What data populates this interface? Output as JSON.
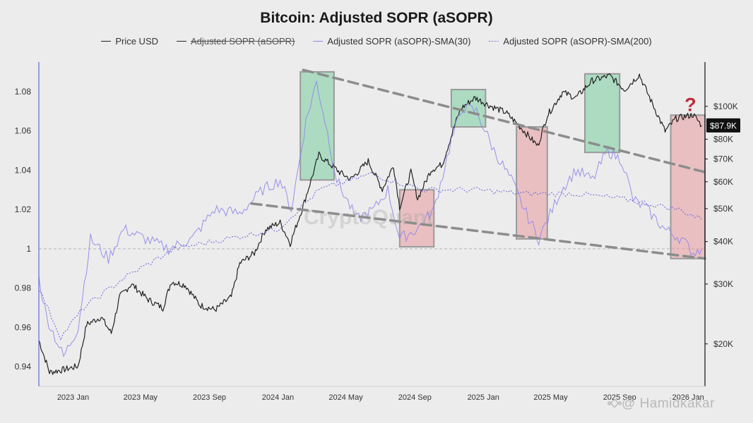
{
  "chart_data": {
    "type": "line",
    "title": "Bitcoin: Adjusted SOPR (aSOPR)",
    "legend": [
      {
        "name": "Price USD",
        "color": "#222222",
        "style": "solid",
        "struck": false
      },
      {
        "name": "Adjusted SOPR (aSOPR)",
        "color": "#222222",
        "style": "solid",
        "struck": true
      },
      {
        "name": "Adjusted SOPR (aSOPR)-SMA(30)",
        "color": "#8f86ea",
        "style": "solid",
        "struck": false
      },
      {
        "name": "Adjusted SOPR (aSOPR)-SMA(200)",
        "color": "#6e66dd",
        "style": "dotted",
        "struck": false
      }
    ],
    "legend_position": "top-center",
    "x_range": [
      "2022-11-01",
      "2026-01-31"
    ],
    "x_ticks": [
      "2023 Jan",
      "2023 May",
      "2023 Sep",
      "2024 Jan",
      "2024 May",
      "2024 Sep",
      "2025 Jan",
      "2025 May",
      "2025 Sep",
      "2026 Jan"
    ],
    "y_left": {
      "scale": "linear",
      "range": [
        0.93,
        1.095
      ],
      "ticks": [
        "0.94",
        "0.96",
        "0.98",
        "1",
        "1.02",
        "1.04",
        "1.06",
        "1.08"
      ]
    },
    "y_right": {
      "scale": "log",
      "range": [
        15000,
        135000
      ],
      "ticks": [
        "$20K",
        "$30K",
        "$40K",
        "$50K",
        "$60K",
        "$70K",
        "$80K",
        "$100K"
      ]
    },
    "current_price_label": "$87.9K",
    "reference_line": 1,
    "series": [
      {
        "name": "Price USD",
        "axis": "right",
        "x": [
          "2022-11-01",
          "2022-11-20",
          "2022-12-15",
          "2023-01-10",
          "2023-01-25",
          "2023-02-20",
          "2023-03-10",
          "2023-03-25",
          "2023-04-15",
          "2023-05-15",
          "2023-06-10",
          "2023-06-25",
          "2023-07-20",
          "2023-08-15",
          "2023-09-11",
          "2023-10-10",
          "2023-10-25",
          "2023-11-20",
          "2023-12-10",
          "2024-01-05",
          "2024-01-23",
          "2024-02-15",
          "2024-03-14",
          "2024-04-20",
          "2024-05-10",
          "2024-06-10",
          "2024-07-05",
          "2024-07-25",
          "2024-08-05",
          "2024-08-25",
          "2024-09-06",
          "2024-09-30",
          "2024-10-20",
          "2024-11-12",
          "2024-11-22",
          "2024-12-17",
          "2025-01-15",
          "2025-02-10",
          "2025-03-05",
          "2025-04-08",
          "2025-04-25",
          "2025-05-22",
          "2025-06-15",
          "2025-07-14",
          "2025-08-14",
          "2025-09-10",
          "2025-10-06",
          "2025-10-20",
          "2025-11-21",
          "2025-12-10",
          "2026-01-10",
          "2026-01-25"
        ],
        "y": [
          20500,
          16500,
          16800,
          17200,
          22800,
          24000,
          21500,
          27500,
          30000,
          27000,
          25500,
          30500,
          29800,
          26000,
          25200,
          27500,
          34500,
          37000,
          43500,
          45500,
          39500,
          51000,
          72000,
          64000,
          61000,
          69000,
          57000,
          67000,
          50500,
          64000,
          53500,
          65000,
          67500,
          89000,
          98500,
          106000,
          100000,
          96000,
          88000,
          76500,
          94000,
          110000,
          106000,
          119000,
          123000,
          112000,
          124000,
          110000,
          84500,
          92000,
          94500,
          87900
        ]
      },
      {
        "name": "Adjusted SOPR (aSOPR)-SMA(30)",
        "axis": "left",
        "x": [
          "2022-11-01",
          "2022-11-15",
          "2022-12-15",
          "2023-01-10",
          "2023-02-01",
          "2023-03-05",
          "2023-04-01",
          "2023-05-10",
          "2023-06-20",
          "2023-08-01",
          "2023-09-10",
          "2023-10-25",
          "2023-12-05",
          "2024-01-05",
          "2024-01-25",
          "2024-02-20",
          "2024-03-10",
          "2024-03-25",
          "2024-04-15",
          "2024-05-20",
          "2024-06-20",
          "2024-07-15",
          "2024-08-05",
          "2024-09-05",
          "2024-10-05",
          "2024-11-05",
          "2024-11-25",
          "2024-12-20",
          "2025-01-20",
          "2025-02-20",
          "2025-03-15",
          "2025-04-10",
          "2025-05-20",
          "2025-06-15",
          "2025-07-15",
          "2025-08-10",
          "2025-09-05",
          "2025-09-25",
          "2025-10-20",
          "2025-11-20",
          "2025-12-20",
          "2026-01-10",
          "2026-01-25"
        ],
        "y": [
          0.985,
          0.965,
          0.945,
          0.96,
          1.005,
          0.995,
          1.01,
          1.005,
          1.0,
          1.005,
          1.02,
          1.018,
          1.03,
          1.035,
          1.02,
          1.065,
          1.085,
          1.065,
          1.035,
          1.015,
          1.02,
          1.03,
          1.005,
          1.01,
          1.02,
          1.055,
          1.072,
          1.07,
          1.05,
          1.035,
          1.02,
          1.005,
          1.03,
          1.04,
          1.035,
          1.05,
          1.045,
          1.025,
          1.02,
          1.01,
          1.005,
          0.998,
          1.0
        ]
      },
      {
        "name": "Adjusted SOPR (aSOPR)-SMA(200)",
        "axis": "left",
        "x": [
          "2022-11-01",
          "2022-12-10",
          "2023-01-20",
          "2023-04-01",
          "2023-07-01",
          "2023-10-01",
          "2024-01-01",
          "2024-03-15",
          "2024-06-15",
          "2024-09-15",
          "2024-12-15",
          "2025-03-15",
          "2025-06-15",
          "2025-09-15",
          "2025-12-15",
          "2026-01-25"
        ],
        "y": [
          0.98,
          0.955,
          0.97,
          0.985,
          1.0,
          1.005,
          1.01,
          1.03,
          1.038,
          1.03,
          1.03,
          1.028,
          1.028,
          1.025,
          1.02,
          1.015
        ]
      }
    ],
    "annotations": [
      {
        "type": "box",
        "color": "green",
        "x": [
          "2024-02-10",
          "2024-04-10"
        ],
        "y": [
          1.035,
          1.09
        ]
      },
      {
        "type": "box",
        "color": "red",
        "x": [
          "2024-08-05",
          "2024-10-05"
        ],
        "y": [
          1.001,
          1.03
        ]
      },
      {
        "type": "box",
        "color": "green",
        "x": [
          "2024-11-05",
          "2025-01-05"
        ],
        "y": [
          1.062,
          1.081
        ]
      },
      {
        "type": "box",
        "color": "red",
        "x": [
          "2025-03-01",
          "2025-04-25"
        ],
        "y": [
          1.005,
          1.062
        ]
      },
      {
        "type": "box",
        "color": "green",
        "x": [
          "2025-07-01",
          "2025-09-01"
        ],
        "y": [
          1.049,
          1.089
        ]
      },
      {
        "type": "box",
        "color": "red",
        "x": [
          "2025-12-01",
          "2026-01-31"
        ],
        "y": [
          0.995,
          1.068
        ]
      },
      {
        "type": "trendline",
        "style": "dashed",
        "x": [
          "2024-02-15",
          "2026-01-31"
        ],
        "y": [
          1.091,
          1.039
        ]
      },
      {
        "type": "trendline",
        "style": "dashed",
        "x": [
          "2023-11-15",
          "2026-01-31"
        ],
        "y": [
          1.023,
          0.995
        ]
      },
      {
        "type": "text",
        "label": "?",
        "color": "#c0283c",
        "x": "2026-01-05",
        "y": 1.073
      }
    ],
    "watermark": "CryptoQuant",
    "credit": "@ Hamidkakar"
  }
}
